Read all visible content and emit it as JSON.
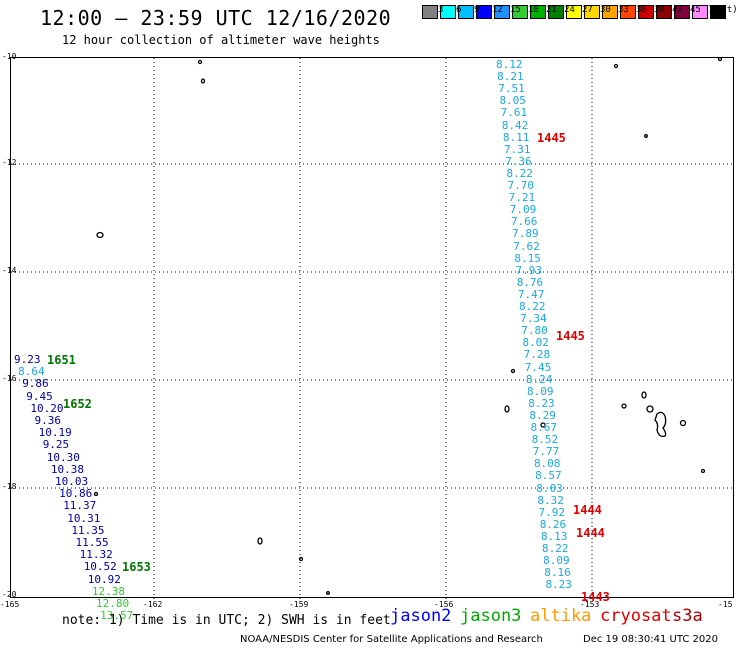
{
  "header": {
    "title": "12:00 – 23:59 UTC 12/16/2020",
    "subtitle": "12 hour collection of altimeter wave heights"
  },
  "legend": {
    "unit": "(ft)",
    "items": [
      {
        "label": "",
        "color": "#808080"
      },
      {
        "label": "3",
        "color": "#00ffff"
      },
      {
        "label": "6",
        "color": "#00bfff"
      },
      {
        "label": "9",
        "color": "#0000ff"
      },
      {
        "label": "12",
        "color": "#1e90ff"
      },
      {
        "label": "15",
        "color": "#32cd32"
      },
      {
        "label": "18",
        "color": "#00b000"
      },
      {
        "label": "21",
        "color": "#008000"
      },
      {
        "label": "24",
        "color": "#ffff00"
      },
      {
        "label": "27",
        "color": "#ffd700"
      },
      {
        "label": "30",
        "color": "#ffa500"
      },
      {
        "label": "33",
        "color": "#ff4500"
      },
      {
        "label": "36",
        "color": "#cc0000"
      },
      {
        "label": "39",
        "color": "#8b0000"
      },
      {
        "label": "42",
        "color": "#800040"
      },
      {
        "label": "45",
        "color": "#ff88ff"
      },
      {
        "label": "70",
        "color": "#000000"
      }
    ]
  },
  "axes": {
    "lon_ticks": [
      "-165",
      "-162",
      "-159",
      "-156",
      "-153",
      "-15"
    ],
    "lat_ticks": [
      "-10",
      "-12",
      "-14",
      "-16",
      "-18",
      "-20"
    ]
  },
  "track_east": {
    "color": "#1aa8e0",
    "values": [
      "8.12",
      "8.21",
      "7.51",
      "8.05",
      "7.61",
      "8.42",
      "8.11",
      "7.31",
      "7.36",
      "8.22",
      "7.70",
      "7.21",
      "7.09",
      "7.66",
      "7.89",
      "7.62",
      "8.15",
      "7.93",
      "8.76",
      "7.47",
      "8.22",
      "7.34",
      "7.80",
      "8.02",
      "7.28",
      "7.45",
      "8.24",
      "8.09",
      "8.23",
      "8.29",
      "8.67",
      "8.52",
      "7.77",
      "8.08",
      "8.57",
      "8.03",
      "8.32",
      "7.92",
      "8.26",
      "8.13",
      "8.22",
      "8.09",
      "8.16",
      "8.23"
    ]
  },
  "track_west": {
    "values": [
      {
        "v": "9.23",
        "color": "#0000a0"
      },
      {
        "v": "8.64",
        "color": "#1aa8e0"
      },
      {
        "v": "9.86",
        "color": "#0000a0"
      },
      {
        "v": "9.45",
        "color": "#0000a0"
      },
      {
        "v": "10.20",
        "color": "#0000a0"
      },
      {
        "v": "9.36",
        "color": "#0000a0"
      },
      {
        "v": "10.19",
        "color": "#0000a0"
      },
      {
        "v": "9.25",
        "color": "#0000a0"
      },
      {
        "v": "10.30",
        "color": "#0000a0"
      },
      {
        "v": "10.38",
        "color": "#0000a0"
      },
      {
        "v": "10.03",
        "color": "#0000a0"
      },
      {
        "v": "10.86",
        "color": "#0000a0"
      },
      {
        "v": "11.37",
        "color": "#0000a0"
      },
      {
        "v": "10.31",
        "color": "#0000a0"
      },
      {
        "v": "11.35",
        "color": "#0000a0"
      },
      {
        "v": "11.55",
        "color": "#0000a0"
      },
      {
        "v": "11.32",
        "color": "#0000a0"
      },
      {
        "v": "10.52",
        "color": "#0000a0"
      },
      {
        "v": "10.92",
        "color": "#0000a0"
      },
      {
        "v": "12.38",
        "color": "#33cc33"
      },
      {
        "v": "12.80",
        "color": "#33cc33"
      },
      {
        "v": "13.57",
        "color": "#33cc33"
      }
    ]
  },
  "times": [
    {
      "t": "1445",
      "color": "#dd0000"
    },
    {
      "t": "1445",
      "color": "#dd0000"
    },
    {
      "t": "1444",
      "color": "#dd0000"
    },
    {
      "t": "1444",
      "color": "#dd0000"
    },
    {
      "t": "1443",
      "color": "#dd0000"
    },
    {
      "t": "1651",
      "color": "#007700"
    },
    {
      "t": "1652",
      "color": "#007700"
    },
    {
      "t": "1653",
      "color": "#007700"
    }
  ],
  "footer": {
    "note": "note: 1) Time is in UTC; 2) SWH is in feet",
    "satellites": [
      {
        "name": "jason2",
        "color": "#0000ff"
      },
      {
        "name": "jason3",
        "color": "#00aa00"
      },
      {
        "name": "altika",
        "color": "#ff9900"
      },
      {
        "name": "cryosat",
        "color": "#dd0000"
      },
      {
        "name": "s3a",
        "color": "#aa0000"
      }
    ],
    "credit": "NOAA/NESDIS Center for Satellite Applications and Research",
    "timestamp": "Dec 19 08:30:41 UTC 2020"
  }
}
